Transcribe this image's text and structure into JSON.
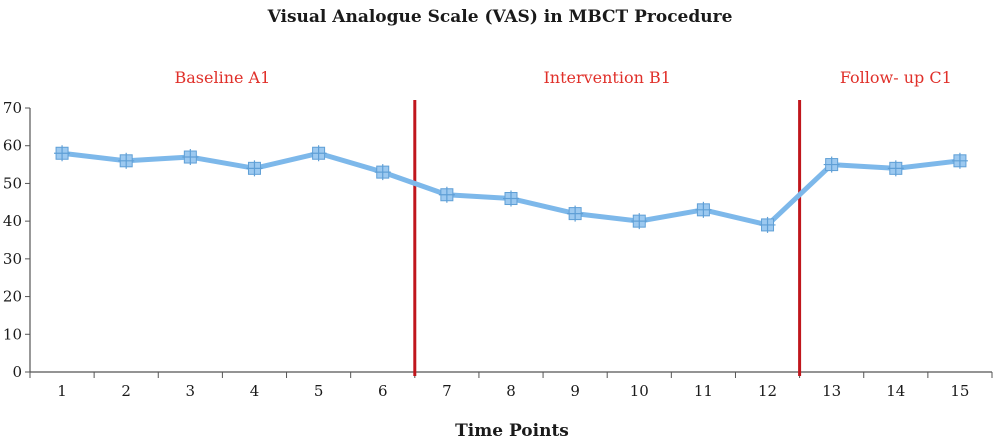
{
  "chart_data": {
    "type": "line",
    "title": "Visual Analogue Scale (VAS) in MBCT Procedure",
    "xlabel": "Time Points",
    "ylabel": "",
    "x": [
      1,
      2,
      3,
      4,
      5,
      6,
      7,
      8,
      9,
      10,
      11,
      12,
      13,
      14,
      15
    ],
    "x_tick_labels": [
      "1",
      "2",
      "3",
      "4",
      "5",
      "6",
      "7",
      "8",
      "9",
      "10",
      "11",
      "12",
      "13",
      "14",
      "15"
    ],
    "y_tick_labels": [
      "0",
      "10",
      "20",
      "30",
      "40",
      "50",
      "60",
      "70"
    ],
    "ylim": [
      0,
      70
    ],
    "xlim": [
      0.5,
      15.5
    ],
    "grid": false,
    "series": [
      {
        "values": [
          58,
          56,
          57,
          54,
          58,
          53,
          47,
          46,
          42,
          40,
          43,
          39,
          55,
          54,
          56
        ]
      }
    ],
    "phase_dividers": [
      6.5,
      12.5
    ],
    "phase_labels": [
      {
        "label": "Baseline A1",
        "from": 0.5,
        "to": 6.5
      },
      {
        "label": "Intervention B1",
        "from": 6.5,
        "to": 12.5
      },
      {
        "label": "Follow- up C1",
        "from": 12.5,
        "to": 15.5
      }
    ],
    "colors": {
      "line": "#7db8ea",
      "marker": "#9cc9f0",
      "divider": "#c0161c",
      "phase_label": "#e0302a"
    }
  }
}
